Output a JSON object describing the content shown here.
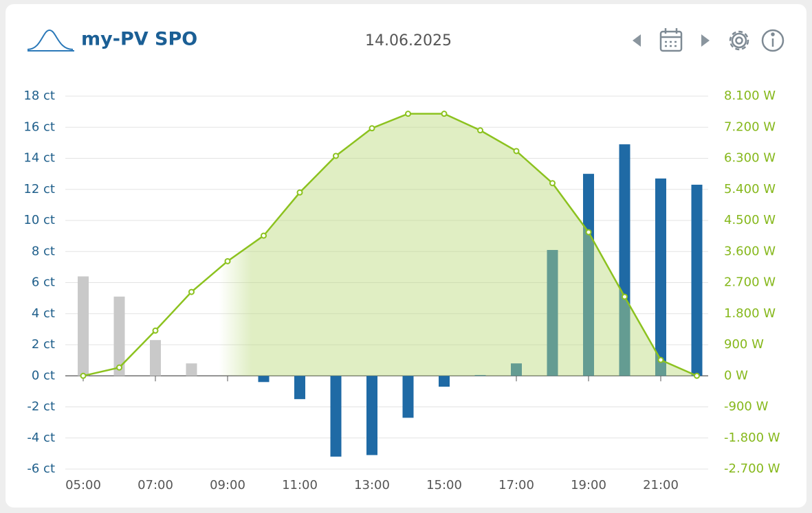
{
  "header": {
    "title": "my-PV SPO",
    "date": "14.06.2025"
  },
  "chart_data": {
    "type": "bar",
    "categories": [
      "05:00",
      null,
      "07:00",
      null,
      "09:00",
      null,
      "11:00",
      null,
      "13:00",
      null,
      "15:00",
      null,
      "17:00",
      null,
      "19:00",
      null,
      "21:00",
      null
    ],
    "series": [
      {
        "type": "bar",
        "colors": [
          "#c9c9c9",
          "#c9c9c9",
          "#c9c9c9",
          "#c9c9c9",
          "#1f6aa5",
          "#1f6aa5",
          "#1f6aa5",
          "#1f6aa5",
          "#1f6aa5",
          "#1f6aa5",
          "#1f6aa5",
          "#1f6aa5",
          "#1f6aa5",
          "#1f6aa5",
          "#1f6aa5",
          "#1f6aa5",
          "#1f6aa5",
          "#1f6aa5"
        ],
        "values": [
          6.4,
          5.1,
          2.3,
          0.8,
          0,
          -0.4,
          -1.5,
          -5.2,
          -5.1,
          -2.7,
          -0.7,
          0.05,
          0.8,
          8.1,
          13.0,
          14.9,
          12.7,
          12.3
        ]
      },
      {
        "type": "line",
        "axis": "y2",
        "color": "#8cc21f",
        "values": [
          0,
          240,
          1310,
          2430,
          3320,
          4060,
          5310,
          6370,
          7170,
          7590,
          7590,
          7110,
          6510,
          5580,
          4160,
          2290,
          460,
          0
        ]
      }
    ],
    "ylim": [
      -6,
      18
    ],
    "yticks": [
      {
        "value": -6,
        "label": "-6 ct"
      },
      {
        "value": -4,
        "label": "-4 ct"
      },
      {
        "value": -2,
        "label": "-2 ct"
      },
      {
        "value": 0,
        "label": "0 ct"
      },
      {
        "value": 2,
        "label": "2 ct"
      },
      {
        "value": 4,
        "label": "4 ct"
      },
      {
        "value": 6,
        "label": "6 ct"
      },
      {
        "value": 8,
        "label": "8 ct"
      },
      {
        "value": 10,
        "label": "10 ct"
      },
      {
        "value": 12,
        "label": "12 ct"
      },
      {
        "value": 14,
        "label": "14 ct"
      },
      {
        "value": 16,
        "label": "16 ct"
      },
      {
        "value": 18,
        "label": "18 ct"
      }
    ],
    "y2lim": [
      -2700,
      8100
    ],
    "y2ticks": [
      {
        "value": -2700,
        "label": "-2.700 W"
      },
      {
        "value": -1800,
        "label": "-1.800 W"
      },
      {
        "value": -900,
        "label": "-900 W"
      },
      {
        "value": 0,
        "label": "0 W"
      },
      {
        "value": 900,
        "label": "900 W"
      },
      {
        "value": 1800,
        "label": "1.800 W"
      },
      {
        "value": 2700,
        "label": "2.700 W"
      },
      {
        "value": 3600,
        "label": "3.600 W"
      },
      {
        "value": 4500,
        "label": "4.500 W"
      },
      {
        "value": 5400,
        "label": "5.400 W"
      },
      {
        "value": 6300,
        "label": "6.300 W"
      },
      {
        "value": 7200,
        "label": "7.200 W"
      },
      {
        "value": 8100,
        "label": "8.100 W"
      }
    ],
    "grid": true
  }
}
